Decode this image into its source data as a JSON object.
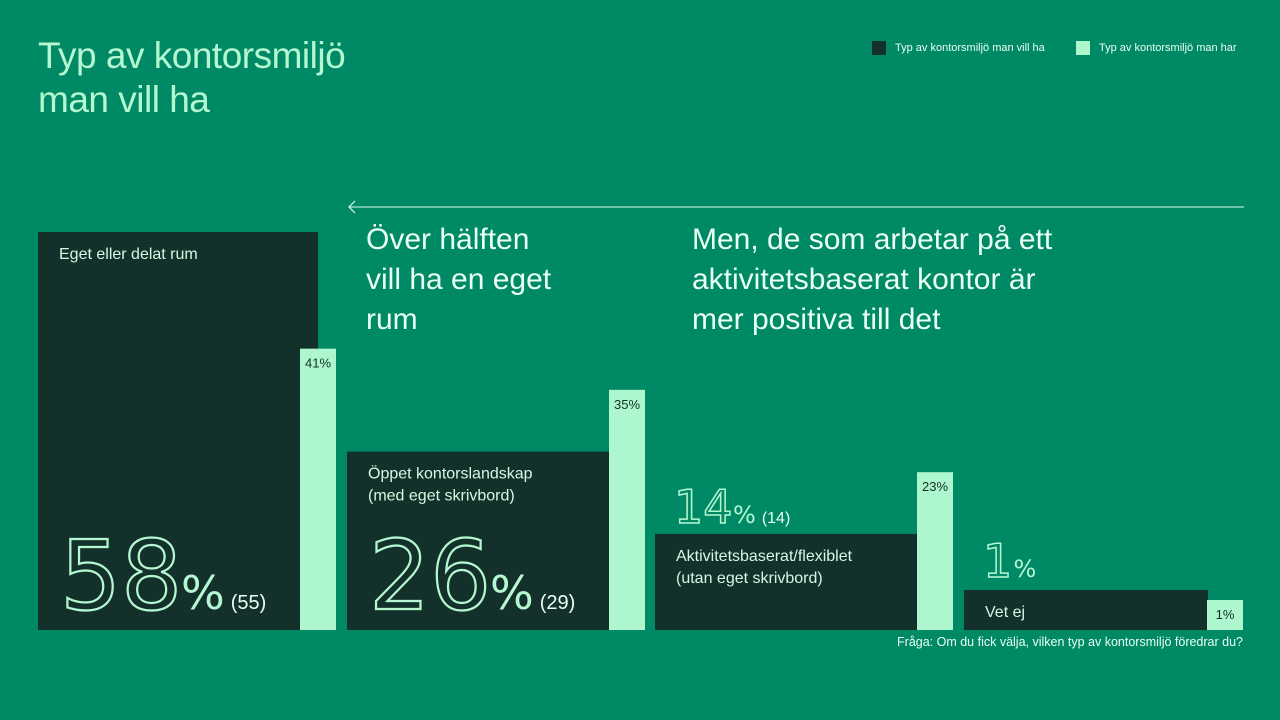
{
  "title_line1": "Typ av kontorsmiljö",
  "title_line2": "man vill ha",
  "legend": {
    "want_label": "Typ av kontorsmiljö man vill ha",
    "have_label": "Typ av kontorsmiljö man har"
  },
  "colors": {
    "background": "#008965",
    "want": "#14302a",
    "have": "#aef6cd",
    "text_light": "#b5f7d0"
  },
  "callout_left": [
    "Över hälften",
    "vill ha en eget",
    "rum"
  ],
  "callout_right": [
    "Men, de som arbetar på ett",
    "aktivitetsbaserat kontor är",
    "mer positiva till det"
  ],
  "question": "Fråga: Om du fick välja, vilken typ av kontorsmiljö föredrar du?",
  "chart_data": {
    "type": "bar",
    "categories": [
      "Eget eller delat rum",
      "Öppet kontorslandskap (med eget skrivbord)",
      "Aktivitetsbaserat/flexiblet (utan eget skrivbord)",
      "Vet ej"
    ],
    "category_lines": [
      [
        "Eget eller delat rum"
      ],
      [
        "Öppet kontorslandskap",
        "(med eget skrivbord)"
      ],
      [
        "Aktivitetsbaserat/flexiblet",
        "(utan eget skrivbord)"
      ],
      [
        "Vet ej"
      ]
    ],
    "series": [
      {
        "name": "Typ av kontorsmiljö man vill ha",
        "values": [
          58,
          26,
          14,
          1
        ]
      },
      {
        "name": "Typ av kontorsmiljö man har",
        "values": [
          41,
          35,
          23,
          1
        ]
      }
    ],
    "previous_values": [
      "(55)",
      "(29)",
      "(14)",
      ""
    ],
    "percent_sign": "%",
    "have_labels": [
      "41%",
      "35%",
      "23%",
      "1%"
    ],
    "ylim": [
      0,
      58
    ]
  }
}
